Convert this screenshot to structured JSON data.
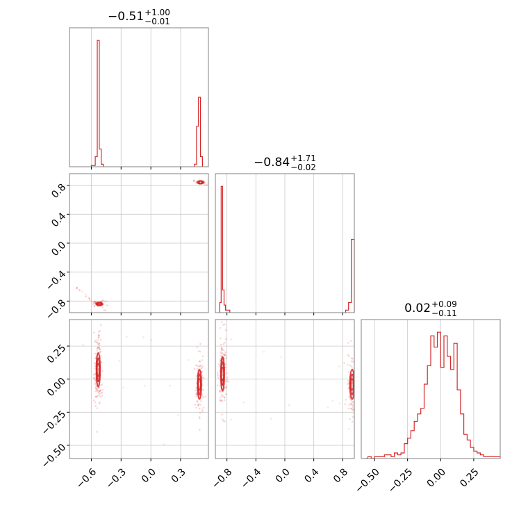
{
  "chart_data": {
    "type": "corner",
    "color": "#d62728",
    "grid": true,
    "parameters": [
      {
        "id": "p0",
        "range": [
          -0.82,
          0.58
        ],
        "ticks": [
          -0.6,
          -0.3,
          0.0,
          0.3
        ],
        "tick_labels": [
          "−0.6",
          "−0.3",
          "0.0",
          "0.3"
        ]
      },
      {
        "id": "p1",
        "range": [
          -0.96,
          0.96
        ],
        "ticks": [
          -0.8,
          -0.4,
          0.0,
          0.4,
          0.8
        ],
        "tick_labels": [
          "−0.8",
          "−0.4",
          "0.0",
          "0.4",
          "0.8"
        ]
      },
      {
        "id": "p2",
        "range": [
          -0.6,
          0.45
        ],
        "ticks": [
          -0.5,
          -0.25,
          0.0,
          0.25
        ],
        "tick_labels": [
          "−0.50",
          "−0.25",
          "0.00",
          "0.25"
        ]
      }
    ],
    "titles": [
      {
        "median": "−0.51",
        "plus": "+1.00",
        "minus": "−0.01"
      },
      {
        "median": "−0.84",
        "plus": "+1.71",
        "minus": "−0.02"
      },
      {
        "median": "0.02",
        "plus": "+0.09",
        "minus": "−0.11"
      }
    ],
    "histograms": [
      {
        "bins": [
          [
            -0.6,
            -0.56,
            0.01
          ],
          [
            -0.56,
            -0.54,
            0.08
          ],
          [
            -0.54,
            -0.52,
            1.0
          ],
          [
            -0.52,
            -0.5,
            0.14
          ],
          [
            -0.5,
            -0.48,
            0.02
          ],
          [
            0.44,
            0.46,
            0.02
          ],
          [
            0.46,
            0.48,
            0.32
          ],
          [
            0.48,
            0.5,
            0.55
          ],
          [
            0.5,
            0.52,
            0.08
          ]
        ],
        "ymax": 1.0
      },
      {
        "bins": [
          [
            -0.9,
            -0.88,
            0.08
          ],
          [
            -0.88,
            -0.86,
            1.0
          ],
          [
            -0.86,
            -0.84,
            0.18
          ],
          [
            -0.84,
            -0.82,
            0.06
          ],
          [
            -0.82,
            -0.76,
            0.02
          ],
          [
            0.84,
            0.88,
            0.02
          ],
          [
            0.88,
            0.92,
            0.08
          ],
          [
            0.92,
            0.96,
            0.58
          ]
        ],
        "ymax": 1.0
      },
      {
        "bins": [
          [
            -0.575,
            -0.55,
            0.0
          ],
          [
            -0.55,
            -0.525,
            0.01
          ],
          [
            -0.525,
            -0.5,
            0.0
          ],
          [
            -0.5,
            -0.475,
            0.01
          ],
          [
            -0.475,
            -0.45,
            0.01
          ],
          [
            -0.45,
            -0.425,
            0.01
          ],
          [
            -0.425,
            -0.4,
            0.02
          ],
          [
            -0.4,
            -0.375,
            0.02
          ],
          [
            -0.375,
            -0.35,
            0.01
          ],
          [
            -0.35,
            -0.325,
            0.03
          ],
          [
            -0.325,
            -0.3,
            0.02
          ],
          [
            -0.3,
            -0.275,
            0.03
          ],
          [
            -0.275,
            -0.25,
            0.08
          ],
          [
            -0.25,
            -0.225,
            0.11
          ],
          [
            -0.225,
            -0.2,
            0.15
          ],
          [
            -0.2,
            -0.175,
            0.2
          ],
          [
            -0.175,
            -0.15,
            0.24
          ],
          [
            -0.15,
            -0.125,
            0.27
          ],
          [
            -0.125,
            -0.1,
            0.4
          ],
          [
            -0.1,
            -0.075,
            0.5
          ],
          [
            -0.075,
            -0.05,
            0.66
          ],
          [
            -0.05,
            -0.025,
            0.6
          ],
          [
            -0.025,
            0.0,
            0.68
          ],
          [
            0.0,
            0.025,
            0.49
          ],
          [
            0.025,
            0.05,
            0.66
          ],
          [
            0.05,
            0.075,
            0.55
          ],
          [
            0.075,
            0.1,
            0.48
          ],
          [
            0.1,
            0.125,
            0.62
          ],
          [
            0.125,
            0.15,
            0.37
          ],
          [
            0.15,
            0.175,
            0.24
          ],
          [
            0.175,
            0.2,
            0.13
          ],
          [
            0.2,
            0.225,
            0.1
          ],
          [
            0.225,
            0.25,
            0.06
          ],
          [
            0.25,
            0.275,
            0.04
          ],
          [
            0.275,
            0.3,
            0.03
          ],
          [
            0.3,
            0.325,
            0.02
          ],
          [
            0.325,
            0.35,
            0.01
          ],
          [
            0.35,
            0.45,
            0.01
          ]
        ],
        "ymax": 0.68
      }
    ],
    "pairs": [
      {
        "x_param": 0,
        "y_param": 1,
        "modes": [
          {
            "x": -0.52,
            "y": -0.84,
            "sx": 0.02,
            "sy": 0.01,
            "n": 60
          },
          {
            "x": 0.5,
            "y": 0.84,
            "sx": 0.02,
            "sy": 0.01,
            "n": 30
          }
        ],
        "tail": {
          "x": [
            -0.75,
            -0.45
          ],
          "y": [
            -0.62,
            -0.95
          ],
          "n": 25
        }
      },
      {
        "x_param": 0,
        "y_param": 2,
        "modes": [
          {
            "x": -0.53,
            "y": 0.07,
            "sx": 0.012,
            "sy": 0.08,
            "n": 140
          },
          {
            "x": 0.49,
            "y": -0.04,
            "sx": 0.012,
            "sy": 0.07,
            "n": 90
          }
        ],
        "tail": {
          "x": [
            -0.8,
            0.5
          ],
          "y": [
            -0.55,
            0.35
          ],
          "n": 12
        }
      },
      {
        "x_param": 1,
        "y_param": 2,
        "modes": [
          {
            "x": -0.86,
            "y": 0.04,
            "sx": 0.015,
            "sy": 0.08,
            "n": 150
          },
          {
            "x": 0.93,
            "y": -0.04,
            "sx": 0.02,
            "sy": 0.07,
            "n": 90
          }
        ],
        "tail": {
          "x": [
            -0.9,
            0.9
          ],
          "y": [
            -0.5,
            0.4
          ],
          "n": 12
        }
      }
    ]
  }
}
